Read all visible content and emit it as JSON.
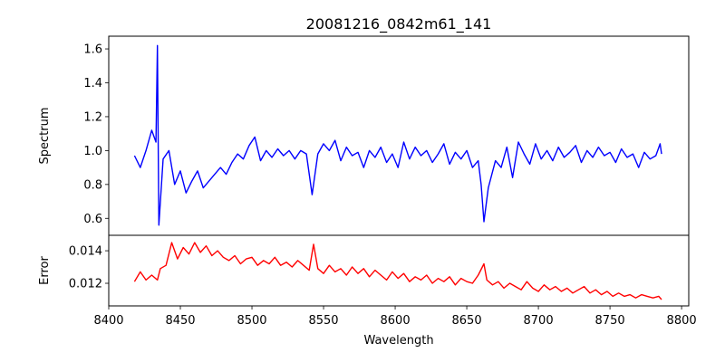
{
  "chart_data": [
    {
      "type": "line",
      "title": "20081216_0842m61_141",
      "xlabel": "",
      "ylabel": "Spectrum",
      "xlim": [
        8400,
        8805
      ],
      "ylim": [
        0.5,
        1.675
      ],
      "yticks": [
        0.6,
        0.8,
        1.0,
        1.2,
        1.4,
        1.6
      ],
      "ytick_labels": [
        "0.6",
        "0.8",
        "1.0",
        "1.2",
        "1.4",
        "1.6"
      ],
      "grid": false,
      "series": [
        {
          "name": "Spectrum",
          "color": "#0000ff",
          "x": [
            8418,
            8422,
            8426,
            8430,
            8433,
            8434,
            8435,
            8438,
            8442,
            8446,
            8450,
            8454,
            8458,
            8462,
            8466,
            8470,
            8474,
            8478,
            8482,
            8486,
            8490,
            8494,
            8498,
            8502,
            8506,
            8510,
            8514,
            8518,
            8522,
            8526,
            8530,
            8534,
            8538,
            8542,
            8546,
            8550,
            8554,
            8558,
            8562,
            8566,
            8570,
            8574,
            8578,
            8582,
            8586,
            8590,
            8594,
            8598,
            8602,
            8606,
            8610,
            8614,
            8618,
            8622,
            8626,
            8630,
            8634,
            8638,
            8642,
            8646,
            8650,
            8654,
            8658,
            8660,
            8662,
            8665,
            8670,
            8674,
            8678,
            8682,
            8686,
            8690,
            8694,
            8698,
            8702,
            8706,
            8710,
            8714,
            8718,
            8722,
            8726,
            8730,
            8734,
            8738,
            8742,
            8746,
            8750,
            8754,
            8758,
            8762,
            8766,
            8770,
            8774,
            8778,
            8782,
            8785,
            8786
          ],
          "y": [
            0.97,
            0.9,
            1.0,
            1.12,
            1.05,
            1.62,
            0.56,
            0.95,
            1.0,
            0.8,
            0.88,
            0.75,
            0.82,
            0.88,
            0.78,
            0.82,
            0.86,
            0.9,
            0.86,
            0.93,
            0.98,
            0.95,
            1.03,
            1.08,
            0.94,
            1.0,
            0.96,
            1.01,
            0.97,
            1.0,
            0.95,
            1.0,
            0.98,
            0.74,
            0.98,
            1.04,
            1.0,
            1.06,
            0.94,
            1.02,
            0.97,
            0.99,
            0.9,
            1.0,
            0.96,
            1.02,
            0.93,
            0.98,
            0.9,
            1.05,
            0.95,
            1.02,
            0.97,
            1.0,
            0.93,
            0.98,
            1.04,
            0.92,
            0.99,
            0.95,
            1.0,
            0.9,
            0.94,
            0.8,
            0.58,
            0.78,
            0.94,
            0.9,
            1.02,
            0.84,
            1.05,
            0.98,
            0.92,
            1.04,
            0.95,
            1.0,
            0.94,
            1.02,
            0.96,
            0.99,
            1.03,
            0.93,
            1.0,
            0.96,
            1.02,
            0.97,
            0.99,
            0.93,
            1.01,
            0.96,
            0.98,
            0.9,
            0.99,
            0.95,
            0.97,
            1.04,
            0.98
          ]
        }
      ]
    },
    {
      "type": "line",
      "xlabel": "Wavelength",
      "ylabel": "Error",
      "xlim": [
        8400,
        8805
      ],
      "ylim": [
        0.01061,
        0.01495
      ],
      "xticks": [
        8400,
        8450,
        8500,
        8550,
        8600,
        8650,
        8700,
        8750,
        8800
      ],
      "xtick_labels": [
        "8400",
        "8450",
        "8500",
        "8550",
        "8600",
        "8650",
        "8700",
        "8750",
        "8800"
      ],
      "yticks": [
        0.012,
        0.014
      ],
      "ytick_labels": [
        "0.012",
        "0.014"
      ],
      "grid": false,
      "series": [
        {
          "name": "Error",
          "color": "#ff0000",
          "x": [
            8418,
            8422,
            8426,
            8430,
            8434,
            8436,
            8440,
            8444,
            8448,
            8452,
            8456,
            8460,
            8464,
            8468,
            8472,
            8476,
            8480,
            8484,
            8488,
            8492,
            8496,
            8500,
            8504,
            8508,
            8512,
            8516,
            8520,
            8524,
            8528,
            8532,
            8536,
            8540,
            8543,
            8546,
            8550,
            8554,
            8558,
            8562,
            8566,
            8570,
            8574,
            8578,
            8582,
            8586,
            8590,
            8594,
            8598,
            8602,
            8606,
            8610,
            8614,
            8618,
            8622,
            8626,
            8630,
            8634,
            8638,
            8642,
            8646,
            8650,
            8654,
            8658,
            8662,
            8664,
            8668,
            8672,
            8676,
            8680,
            8684,
            8688,
            8692,
            8696,
            8700,
            8704,
            8708,
            8712,
            8716,
            8720,
            8724,
            8728,
            8732,
            8736,
            8740,
            8744,
            8748,
            8752,
            8756,
            8760,
            8764,
            8768,
            8772,
            8776,
            8780,
            8784,
            8786
          ],
          "y": [
            0.0121,
            0.0127,
            0.0122,
            0.0125,
            0.0122,
            0.0129,
            0.0131,
            0.0145,
            0.0135,
            0.0142,
            0.0138,
            0.0145,
            0.0139,
            0.0143,
            0.0137,
            0.014,
            0.0136,
            0.0134,
            0.0137,
            0.0132,
            0.0135,
            0.0136,
            0.0131,
            0.0134,
            0.0132,
            0.0136,
            0.0131,
            0.0133,
            0.013,
            0.0134,
            0.0131,
            0.0128,
            0.0144,
            0.0129,
            0.0126,
            0.0131,
            0.0127,
            0.0129,
            0.0125,
            0.013,
            0.0126,
            0.0129,
            0.0124,
            0.0128,
            0.0125,
            0.0122,
            0.0127,
            0.0123,
            0.0126,
            0.0121,
            0.0124,
            0.0122,
            0.0125,
            0.012,
            0.0123,
            0.0121,
            0.0124,
            0.0119,
            0.0123,
            0.0121,
            0.012,
            0.0125,
            0.0132,
            0.0122,
            0.0119,
            0.0121,
            0.0117,
            0.012,
            0.0118,
            0.0116,
            0.0121,
            0.0117,
            0.0115,
            0.0119,
            0.0116,
            0.0118,
            0.0115,
            0.0117,
            0.0114,
            0.0116,
            0.0118,
            0.0114,
            0.0116,
            0.0113,
            0.0115,
            0.0112,
            0.0114,
            0.0112,
            0.0113,
            0.0111,
            0.0113,
            0.0112,
            0.0111,
            0.0112,
            0.011
          ]
        }
      ]
    }
  ]
}
